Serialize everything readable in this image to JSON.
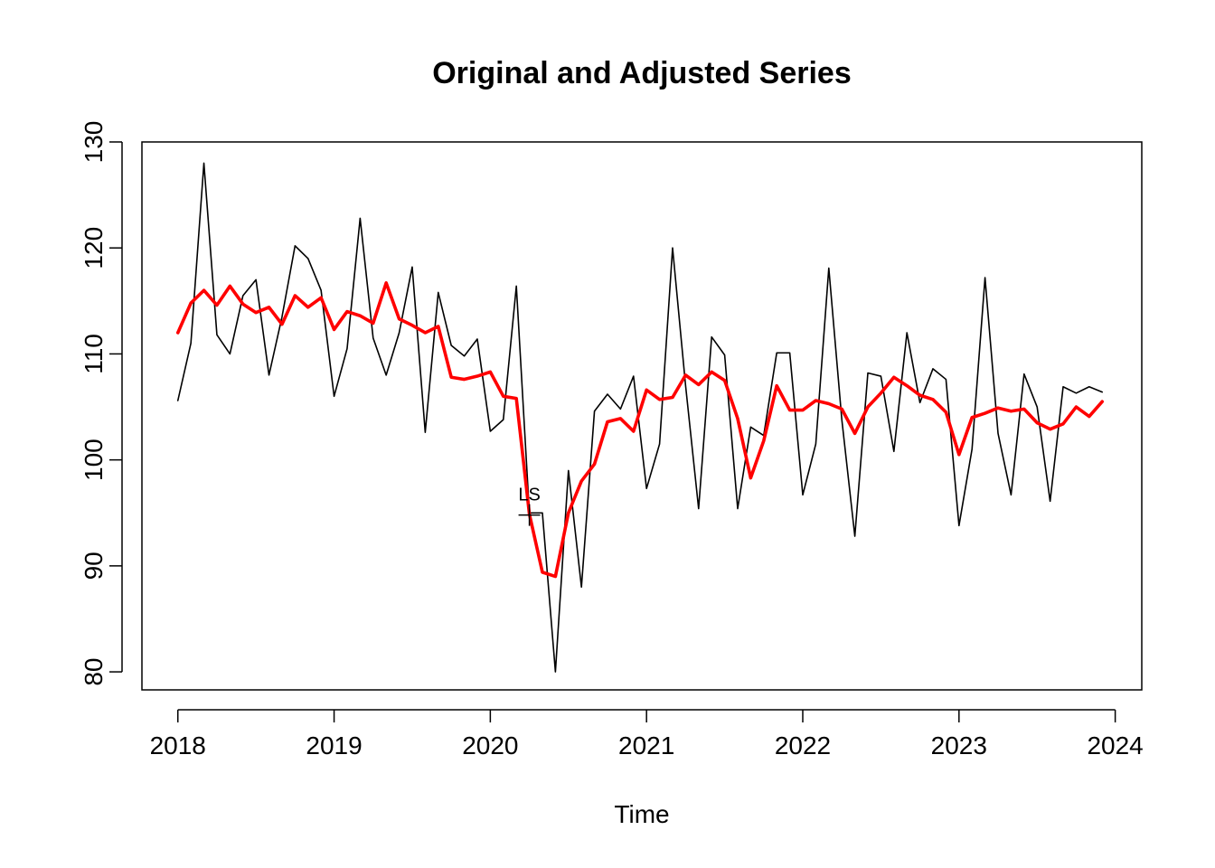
{
  "chart_data": {
    "type": "line",
    "title": "Original and Adjusted Series",
    "xlabel": "Time",
    "ylabel": "",
    "xlim": [
      2017.77,
      2024.17
    ],
    "ylim": [
      78.3,
      130.0
    ],
    "x_ticks": [
      2018,
      2019,
      2020,
      2021,
      2022,
      2023,
      2024
    ],
    "x_tick_labels": [
      "2018",
      "2019",
      "2020",
      "2021",
      "2022",
      "2023",
      "2024"
    ],
    "y_ticks": [
      80,
      90,
      100,
      110,
      120,
      130
    ],
    "y_tick_labels": [
      "80",
      "90",
      "100",
      "110",
      "120",
      "130"
    ],
    "start": 2018,
    "frequency": 12,
    "grid": false,
    "legend": "none",
    "series": [
      {
        "color": "#000000",
        "values": [
          105.6,
          111.0,
          128.0,
          111.8,
          110.0,
          115.5,
          117.0,
          108.0,
          113.5,
          120.2,
          119.0,
          116.0,
          106.0,
          110.5,
          122.8,
          111.5,
          108.0,
          112.0,
          118.2,
          102.6,
          115.8,
          110.8,
          109.8,
          111.4,
          102.7,
          103.8,
          116.4,
          95.0,
          95.0,
          80.0,
          99.0,
          88.0,
          104.6,
          106.2,
          104.8,
          107.9,
          97.3,
          101.5,
          120.0,
          107.0,
          95.4,
          111.6,
          109.9,
          95.4,
          103.1,
          102.3,
          110.1,
          110.1,
          96.7,
          101.5,
          118.1,
          103.8,
          92.8,
          108.2,
          107.9,
          100.8,
          112.0,
          105.4,
          108.6,
          107.6,
          93.8,
          101.0,
          117.2,
          102.5,
          96.7,
          108.1,
          105.0,
          96.1,
          106.9,
          106.3,
          106.9,
          106.4
        ]
      },
      {
        "color": "#ff0000",
        "values": [
          112.0,
          114.8,
          116.0,
          114.6,
          116.4,
          114.7,
          113.9,
          114.4,
          112.8,
          115.5,
          114.4,
          115.3,
          112.3,
          114.0,
          113.6,
          112.9,
          116.7,
          113.3,
          112.7,
          112.0,
          112.6,
          107.8,
          107.6,
          107.9,
          108.3,
          106.0,
          105.8,
          94.9,
          89.4,
          89.0,
          95.0,
          98.0,
          99.6,
          103.6,
          103.9,
          102.7,
          106.6,
          105.7,
          105.9,
          108.0,
          107.1,
          108.3,
          107.5,
          103.9,
          98.3,
          101.8,
          107.0,
          104.7,
          104.7,
          105.6,
          105.3,
          104.8,
          102.5,
          105.0,
          106.3,
          107.8,
          107.0,
          106.1,
          105.7,
          104.5,
          100.5,
          104.0,
          104.4,
          104.9,
          104.6,
          104.8,
          103.5,
          102.9,
          103.4,
          105.0,
          104.1,
          105.5
        ]
      }
    ],
    "annotations": [
      {
        "label": "LS",
        "x": 2020.25,
        "y": 94.8
      }
    ]
  }
}
